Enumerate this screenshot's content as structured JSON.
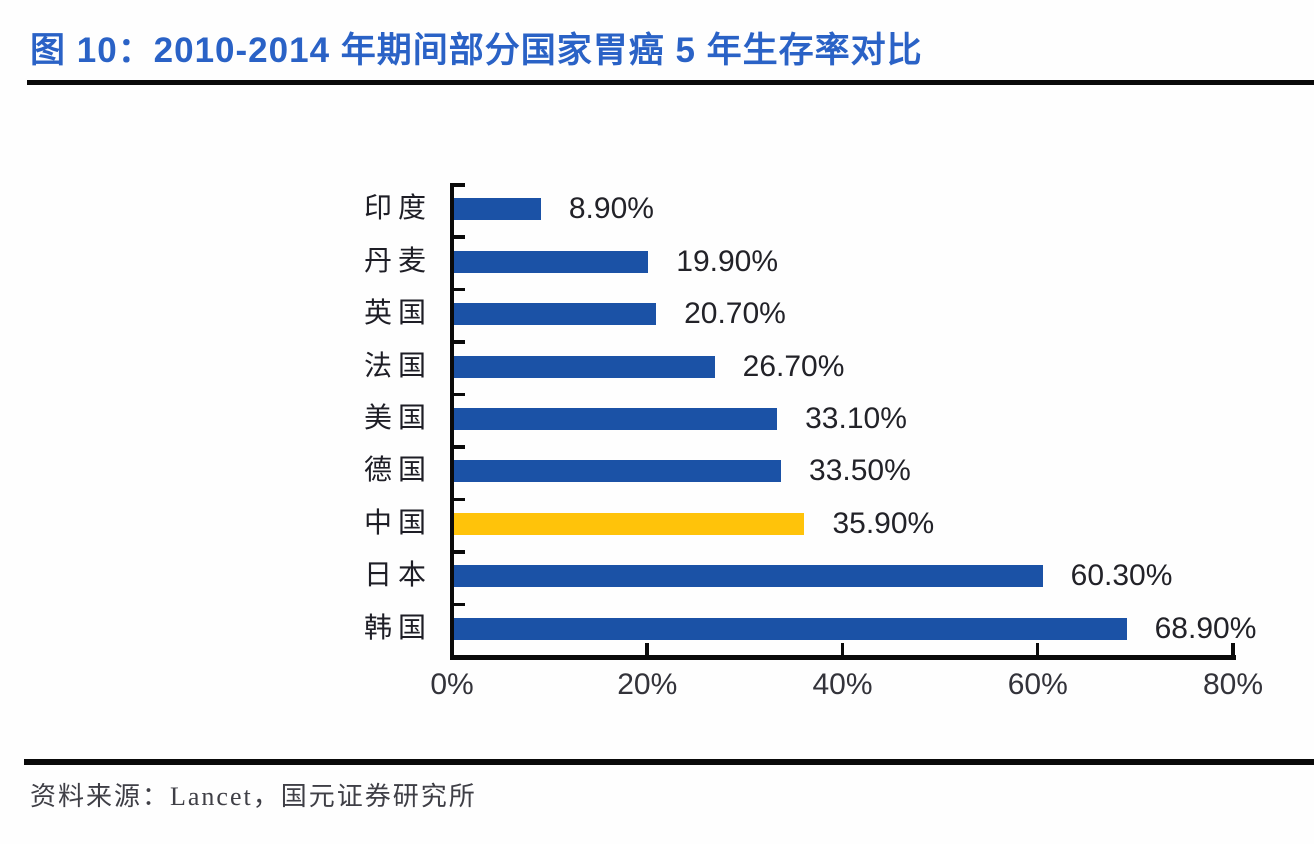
{
  "header": {
    "title": "图 10：2010-2014 年期间部分国家胃癌 5 年生存率对比",
    "title_color": "#2a62c6"
  },
  "chart_data": {
    "type": "bar",
    "orientation": "horizontal",
    "title": "2010-2014 年期间部分国家胃癌 5 年生存率对比",
    "categories": [
      "印度",
      "丹麦",
      "英国",
      "法国",
      "美国",
      "德国",
      "中国",
      "日本",
      "韩国"
    ],
    "values": [
      8.9,
      19.9,
      20.7,
      26.7,
      33.1,
      33.5,
      35.9,
      60.3,
      68.9
    ],
    "value_labels": [
      "8.90%",
      "19.90%",
      "20.70%",
      "26.70%",
      "33.10%",
      "33.50%",
      "35.90%",
      "60.30%",
      "68.90%"
    ],
    "bar_color": "#1b52a6",
    "highlight_category": "中国",
    "highlight_color": "#ffc30a",
    "xlim": [
      0,
      80
    ],
    "x_tick_values": [
      0,
      20,
      40,
      60,
      80
    ],
    "x_tick_labels": [
      "0%",
      "20%",
      "40%",
      "60%",
      "80%"
    ],
    "grid": false,
    "legend": "none",
    "axis_color": "#0a0a0a"
  },
  "footer": {
    "source": "资料来源：Lancet，国元证券研究所"
  }
}
